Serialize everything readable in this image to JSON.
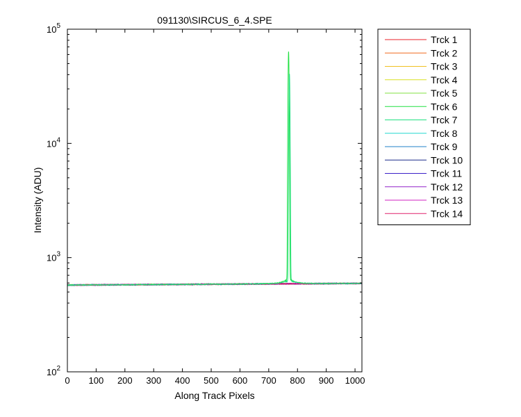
{
  "chart_data": {
    "type": "line",
    "title": "091130\\SIRCUS_6_4.SPE",
    "xlabel": "Along Track Pixels",
    "ylabel": "Intensity (ADU)",
    "xlim": [
      0,
      1024
    ],
    "ylim": [
      100,
      100000
    ],
    "yscale": "log",
    "grid": false,
    "legend_position": "outside-right",
    "x_ticks": [
      0,
      100,
      200,
      300,
      400,
      500,
      600,
      700,
      800,
      900,
      1000
    ],
    "y_ticks": [
      {
        "value": 100,
        "base": "10",
        "exp": "2"
      },
      {
        "value": 1000,
        "base": "10",
        "exp": "3"
      },
      {
        "value": 10000,
        "base": "10",
        "exp": "4"
      },
      {
        "value": 100000,
        "base": "10",
        "exp": "5"
      }
    ],
    "baseline": {
      "x": [
        0,
        1024
      ],
      "y": [
        575,
        595
      ]
    },
    "series": [
      {
        "name": "Trck 1",
        "color": "#e8212a"
      },
      {
        "name": "Trck 2",
        "color": "#f06a1f"
      },
      {
        "name": "Trck 3",
        "color": "#f0c020"
      },
      {
        "name": "Trck 4",
        "color": "#d8e020"
      },
      {
        "name": "Trck 5",
        "color": "#80e040"
      },
      {
        "name": "Trck 6",
        "color": "#20e040",
        "peak": {
          "center": 769,
          "height": 63000,
          "width": 1.6
        },
        "wings": {
          "amplitude": 55,
          "width": 20
        }
      },
      {
        "name": "Trck 7",
        "color": "#20e080",
        "peak": {
          "center": 772,
          "height": 40000,
          "width": 1.6
        },
        "wings": {
          "amplitude": 35,
          "width": 25
        }
      },
      {
        "name": "Trck 8",
        "color": "#20d8d0"
      },
      {
        "name": "Trck 9",
        "color": "#2080c8"
      },
      {
        "name": "Trck 10",
        "color": "#1a2a8a"
      },
      {
        "name": "Trck 11",
        "color": "#3a20c8"
      },
      {
        "name": "Trck 12",
        "color": "#9020c8"
      },
      {
        "name": "Trck 13",
        "color": "#d020c0"
      },
      {
        "name": "Trck 14",
        "color": "#e0206a"
      }
    ]
  }
}
